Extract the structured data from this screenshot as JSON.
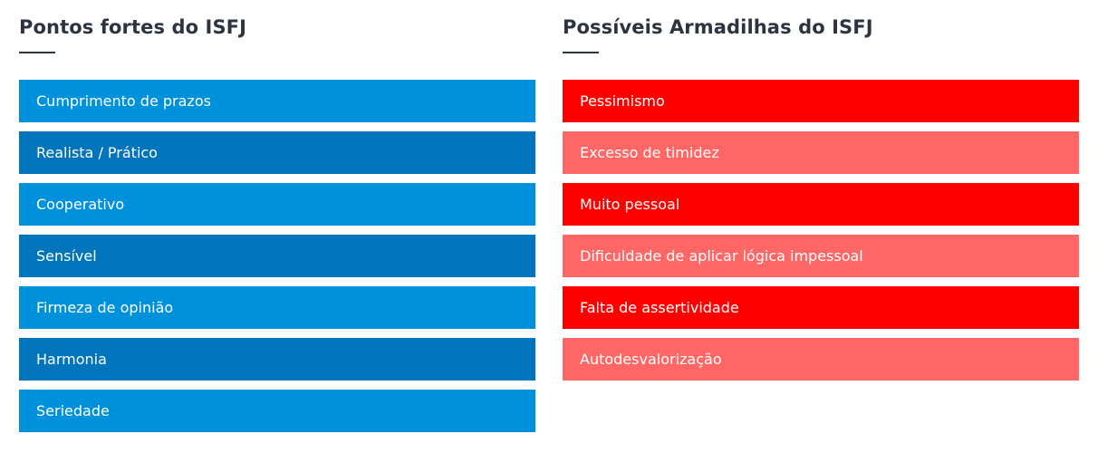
{
  "strengths": {
    "title": "Pontos fortes do ISFJ",
    "colors": [
      "#0091dc",
      "#0075bb"
    ],
    "items": [
      {
        "label": "Cumprimento de prazos"
      },
      {
        "label": "Realista / Prático"
      },
      {
        "label": "Cooperativo"
      },
      {
        "label": "Sensível"
      },
      {
        "label": "Firmeza de opinião"
      },
      {
        "label": "Harmonia"
      },
      {
        "label": "Seriedade"
      }
    ]
  },
  "pitfalls": {
    "title": "Possíveis Armadilhas do ISFJ",
    "colors": [
      "#ff0000",
      "#ff6666"
    ],
    "items": [
      {
        "label": "Pessimismo"
      },
      {
        "label": "Excesso de timidez"
      },
      {
        "label": "Muito pessoal"
      },
      {
        "label": "Dificuldade de aplicar lógica impessoal"
      },
      {
        "label": "Falta de assertividade"
      },
      {
        "label": "Autodesvalorização"
      }
    ]
  }
}
